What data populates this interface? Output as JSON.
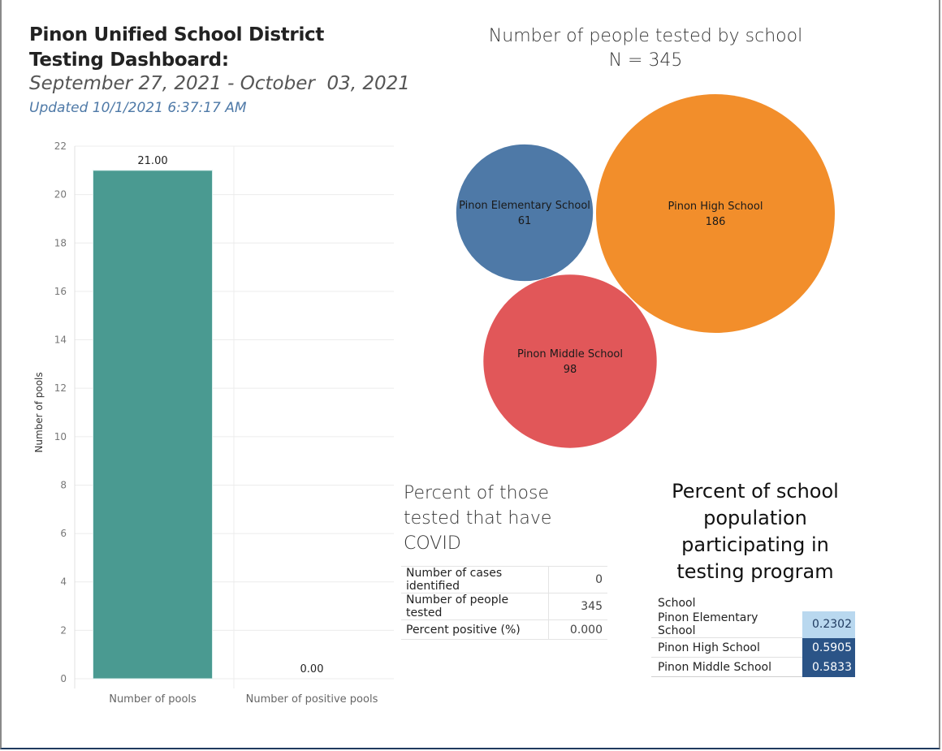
{
  "header": {
    "title": "Pinon Unified School District Testing Dashboard:",
    "date_range": "September 27, 2021 - October  03, 2021",
    "updated": "Updated 10/1/2021 6:37:17 AM"
  },
  "chart_data": [
    {
      "type": "bar",
      "categories": [
        "Number of pools",
        "Number of positive pools"
      ],
      "values": [
        21,
        0
      ],
      "data_labels": [
        "21.00",
        "0.00"
      ],
      "title": "",
      "xlabel": "",
      "ylabel": "Number of pools",
      "ylim": [
        0,
        22
      ],
      "yticks": [
        0,
        2,
        4,
        6,
        8,
        10,
        12,
        14,
        16,
        18,
        20,
        22
      ],
      "grid": true,
      "color": "#4a9a91"
    },
    {
      "type": "bubble",
      "title": "Number of people tested by school",
      "subtitle": "N = 345",
      "categories": [
        "Pinon Elementary School",
        "Pinon High School",
        "Pinon Middle School"
      ],
      "values": [
        61,
        186,
        98
      ],
      "colors": [
        "#4e79a7",
        "#f28e2b",
        "#e15759"
      ]
    }
  ],
  "percent_covid": {
    "title": "Percent of those tested that have COVID",
    "rows": [
      {
        "label": "Number of cases identified",
        "value": "0"
      },
      {
        "label": "Number of people tested",
        "value": "345"
      },
      {
        "label": "Percent positive (%)",
        "value": "0.000"
      }
    ]
  },
  "participation": {
    "title": "Percent of school population participating in testing program",
    "column_header": "School",
    "rows": [
      {
        "school": "Pinon Elementary School",
        "value": "0.2302",
        "bg": "#b9d8ef",
        "fg": "#1f3a5f"
      },
      {
        "school": "Pinon High School",
        "value": "0.5905",
        "bg": "#2b5487",
        "fg": "#ffffff"
      },
      {
        "school": "Pinon Middle School",
        "value": "0.5833",
        "bg": "#2b5487",
        "fg": "#ffffff"
      }
    ]
  }
}
